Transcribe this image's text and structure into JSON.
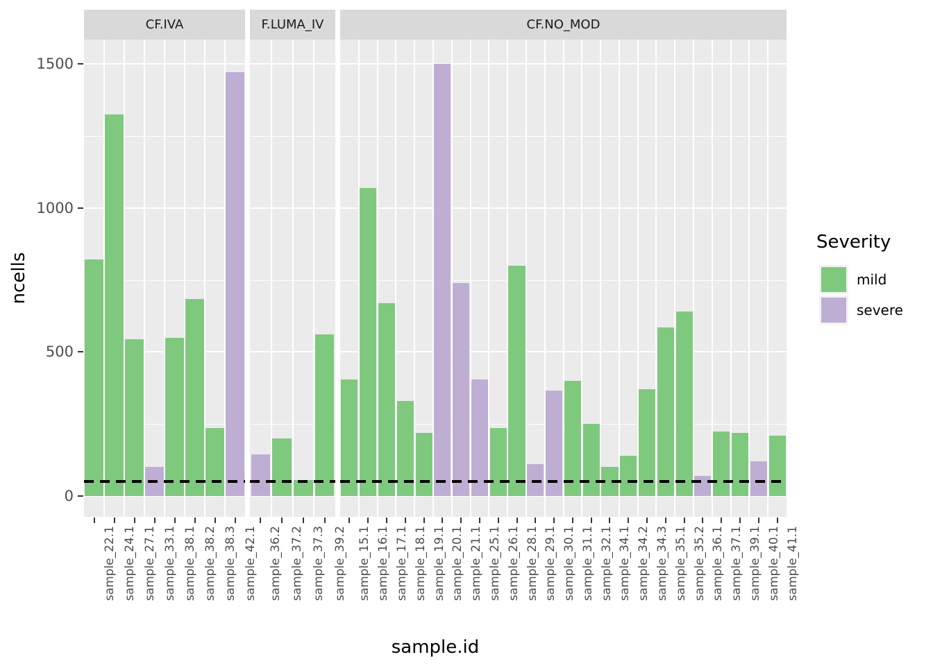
{
  "chart_data": {
    "type": "bar",
    "title": "",
    "xlabel": "sample.id",
    "ylabel": "ncells",
    "y_breaks": [
      0,
      500,
      1000,
      1500
    ],
    "y_minor_breaks": [
      250,
      750,
      1250
    ],
    "ylim": [
      0,
      1584
    ],
    "grid": "on",
    "legend": {
      "title": "Severity",
      "position": "right",
      "entries": [
        {
          "label": "mild",
          "color": "#7fc97f"
        },
        {
          "label": "severe",
          "color": "#beaed4"
        }
      ]
    },
    "reference_line": {
      "y": 50,
      "style": "dashed",
      "color": "#000000"
    },
    "facets": [
      {
        "label": "CF.IVA",
        "bars": [
          {
            "sample": "sample_22.1",
            "severity": "mild",
            "ncells": 820
          },
          {
            "sample": "sample_24.1",
            "severity": "mild",
            "ncells": 1325
          },
          {
            "sample": "sample_27.1",
            "severity": "mild",
            "ncells": 545
          },
          {
            "sample": "sample_33.1",
            "severity": "severe",
            "ncells": 100
          },
          {
            "sample": "sample_38.1",
            "severity": "mild",
            "ncells": 550
          },
          {
            "sample": "sample_38.2",
            "severity": "mild",
            "ncells": 685
          },
          {
            "sample": "sample_38.3",
            "severity": "mild",
            "ncells": 235
          },
          {
            "sample": "sample_42.1",
            "severity": "severe",
            "ncells": 1470
          }
        ]
      },
      {
        "label": "F.LUMA_IV",
        "bars": [
          {
            "sample": "sample_36.2",
            "severity": "severe",
            "ncells": 145
          },
          {
            "sample": "sample_37.2",
            "severity": "mild",
            "ncells": 200
          },
          {
            "sample": "sample_37.3",
            "severity": "mild",
            "ncells": 55
          },
          {
            "sample": "sample_39.2",
            "severity": "mild",
            "ncells": 560
          }
        ]
      },
      {
        "label": "CF.NO_MOD",
        "bars": [
          {
            "sample": "sample_15.1",
            "severity": "mild",
            "ncells": 405
          },
          {
            "sample": "sample_16.1",
            "severity": "mild",
            "ncells": 1070
          },
          {
            "sample": "sample_17.1",
            "severity": "mild",
            "ncells": 670
          },
          {
            "sample": "sample_18.1",
            "severity": "mild",
            "ncells": 330
          },
          {
            "sample": "sample_19.1",
            "severity": "mild",
            "ncells": 220
          },
          {
            "sample": "sample_20.1",
            "severity": "severe",
            "ncells": 1500
          },
          {
            "sample": "sample_21.1",
            "severity": "severe",
            "ncells": 740
          },
          {
            "sample": "sample_25.1",
            "severity": "severe",
            "ncells": 405
          },
          {
            "sample": "sample_26.1",
            "severity": "mild",
            "ncells": 235
          },
          {
            "sample": "sample_28.1",
            "severity": "mild",
            "ncells": 800
          },
          {
            "sample": "sample_29.1",
            "severity": "severe",
            "ncells": 110
          },
          {
            "sample": "sample_30.1",
            "severity": "severe",
            "ncells": 365
          },
          {
            "sample": "sample_31.1",
            "severity": "mild",
            "ncells": 400
          },
          {
            "sample": "sample_32.1",
            "severity": "mild",
            "ncells": 250
          },
          {
            "sample": "sample_34.1",
            "severity": "mild",
            "ncells": 100
          },
          {
            "sample": "sample_34.2",
            "severity": "mild",
            "ncells": 140
          },
          {
            "sample": "sample_34.3",
            "severity": "mild",
            "ncells": 370
          },
          {
            "sample": "sample_35.1",
            "severity": "mild",
            "ncells": 585
          },
          {
            "sample": "sample_35.2",
            "severity": "mild",
            "ncells": 640
          },
          {
            "sample": "sample_36.1",
            "severity": "severe",
            "ncells": 70
          },
          {
            "sample": "sample_37.1",
            "severity": "mild",
            "ncells": 225
          },
          {
            "sample": "sample_39.1",
            "severity": "mild",
            "ncells": 220
          },
          {
            "sample": "sample_40.1",
            "severity": "severe",
            "ncells": 120
          },
          {
            "sample": "sample_41.1",
            "severity": "mild",
            "ncells": 210
          }
        ]
      }
    ]
  },
  "colors": {
    "panel_bg": "#ebebeb",
    "strip_bg": "#d9d9d9",
    "grid": "#ffffff",
    "axis_text": "#4d4d4d",
    "tick_mark": "#333333",
    "mild": "#7fc97f",
    "severe": "#beaed4",
    "reference_line": "#000000"
  }
}
